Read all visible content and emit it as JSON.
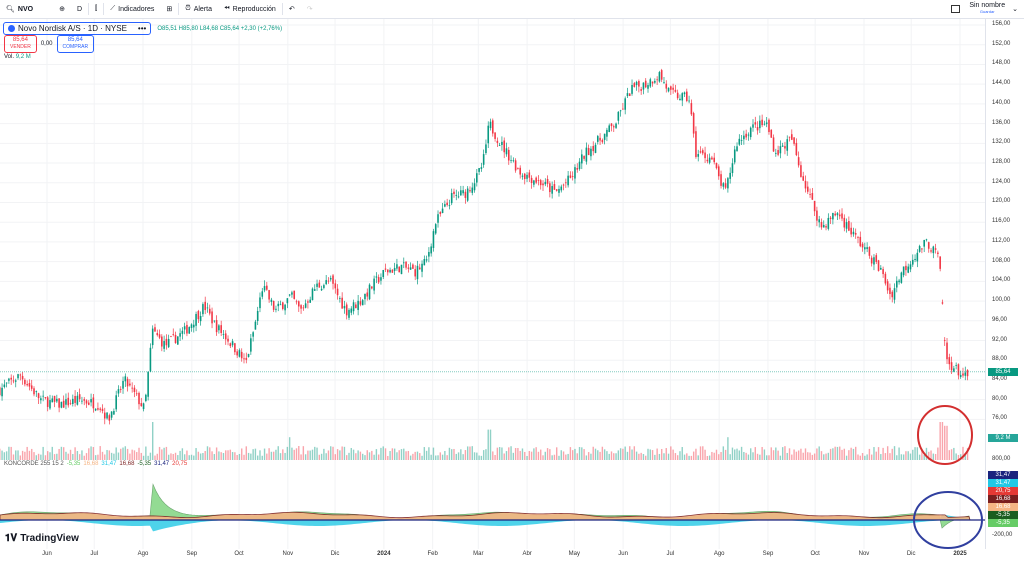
{
  "toolbar": {
    "symbol": "NVO",
    "interval": "D",
    "indicators": "Indicadores",
    "alert": "Alerta",
    "replay": "Reproducción",
    "layout_name": "Sin nombre",
    "save": "Guardar"
  },
  "legend": {
    "title": "Novo Nordisk A/S · 1D · NYSE",
    "ohlc": "O85,51 H85,80 L84,68 C85,64 +2,30 (+2,76%)",
    "sell_price": "85,64",
    "sell_label": "VENDER",
    "spread": "0,00",
    "buy_price": "85,64",
    "buy_label": "COMPRAR",
    "vol_label": "Vol.",
    "vol_value": "9,2 M"
  },
  "konkorde": {
    "name": "KONCORDE 255 15 2",
    "values": [
      {
        "v": "-5,35",
        "c": "#66cc66"
      },
      {
        "v": "16,68",
        "c": "#f5b584"
      },
      {
        "v": "31,47",
        "c": "#22c8e5"
      },
      {
        "v": "16,68",
        "c": "#7a1f1f"
      },
      {
        "v": "-5,35",
        "c": "#1b5e20"
      },
      {
        "v": "31,47",
        "c": "#1a237e"
      },
      {
        "v": "20,75",
        "c": "#e53935"
      }
    ]
  },
  "colors": {
    "up": "#089981",
    "down": "#f23645",
    "annotation_red": "#d32f2f",
    "annotation_blue": "#303f9f"
  },
  "axis_badges": [
    {
      "v": "31,47",
      "c": "#1a237e"
    },
    {
      "v": "31,47",
      "c": "#22c8e5"
    },
    {
      "v": "20,75",
      "c": "#e53935"
    },
    {
      "v": "16,68",
      "c": "#7a1f1f"
    },
    {
      "v": "16,68",
      "c": "#f5b584"
    },
    {
      "v": "-5,35",
      "c": "#1b5e20"
    },
    {
      "v": "-5,35",
      "c": "#66cc66"
    }
  ],
  "price_badge": "85,64",
  "volume_badge": "9,2 M",
  "volume_axis_label": "800,00",
  "konkorde_axis_label": "-200,00",
  "brand": "TradingView",
  "chart_data": {
    "type": "candlestick",
    "y_ticks": [
      "156,00",
      "152,00",
      "148,00",
      "144,00",
      "140,00",
      "136,00",
      "132,00",
      "128,00",
      "124,00",
      "120,00",
      "116,00",
      "112,00",
      "108,00",
      "104,00",
      "100,00",
      "96,00",
      "92,00",
      "88,00",
      "84,00",
      "80,00",
      "76,00"
    ],
    "ylim": [
      76,
      156
    ],
    "x_ticks": [
      [
        "Jun",
        "2023-06-01"
      ],
      [
        "Jul",
        "2023-07-01"
      ],
      [
        "Ago",
        "2023-08-01"
      ],
      [
        "Sep",
        "2023-09-01"
      ],
      [
        "Oct",
        "2023-10-01"
      ],
      [
        "Nov",
        "2023-11-01"
      ],
      [
        "Dic",
        "2023-12-01"
      ],
      [
        "2024",
        "2024-01-01"
      ],
      [
        "Feb",
        "2024-02-01"
      ],
      [
        "Mar",
        "2024-03-01"
      ],
      [
        "Abr",
        "2024-04-01"
      ],
      [
        "May",
        "2024-05-01"
      ],
      [
        "Jun",
        "2024-06-01"
      ],
      [
        "Jul",
        "2024-07-01"
      ],
      [
        "Ago",
        "2024-08-01"
      ],
      [
        "Sep",
        "2024-09-01"
      ],
      [
        "Oct",
        "2024-10-01"
      ],
      [
        "Nov",
        "2024-11-01"
      ],
      [
        "Dic",
        "2024-12-01"
      ],
      [
        "2025",
        "2025-01-01"
      ]
    ],
    "last_price": 85.64,
    "close": [
      [
        "2023-05-02",
        82
      ],
      [
        "2023-05-15",
        85
      ],
      [
        "2023-05-28",
        80
      ],
      [
        "2023-06-09",
        79
      ],
      [
        "2023-06-22",
        80
      ],
      [
        "2023-07-04",
        79
      ],
      [
        "2023-07-10",
        76
      ],
      [
        "2023-07-20",
        84
      ],
      [
        "2023-07-29",
        80
      ],
      [
        "2023-08-02",
        78
      ],
      [
        "2023-08-07",
        94
      ],
      [
        "2023-08-15",
        91
      ],
      [
        "2023-08-28",
        94
      ],
      [
        "2023-09-09",
        99
      ],
      [
        "2023-09-16",
        95
      ],
      [
        "2023-09-22",
        93
      ],
      [
        "2023-10-02",
        89
      ],
      [
        "2023-10-05",
        87
      ],
      [
        "2023-10-11",
        95
      ],
      [
        "2023-10-16",
        103
      ],
      [
        "2023-10-24",
        98
      ],
      [
        "2023-11-03",
        101
      ],
      [
        "2023-11-09",
        98
      ],
      [
        "2023-11-19",
        103
      ],
      [
        "2023-11-28",
        104
      ],
      [
        "2023-12-08",
        98
      ],
      [
        "2023-12-17",
        100
      ],
      [
        "2023-12-27",
        104
      ],
      [
        "2024-01-02",
        106
      ],
      [
        "2024-01-12",
        107
      ],
      [
        "2024-01-21",
        106
      ],
      [
        "2024-01-28",
        108
      ],
      [
        "2024-02-03",
        116
      ],
      [
        "2024-02-13",
        121
      ],
      [
        "2024-02-22",
        122
      ],
      [
        "2024-02-29",
        125
      ],
      [
        "2024-03-04",
        128
      ],
      [
        "2024-03-08",
        136
      ],
      [
        "2024-03-15",
        132
      ],
      [
        "2024-03-28",
        126
      ],
      [
        "2024-04-10",
        124
      ],
      [
        "2024-04-19",
        122
      ],
      [
        "2024-04-29",
        125
      ],
      [
        "2024-05-08",
        130
      ],
      [
        "2024-05-18",
        133
      ],
      [
        "2024-05-27",
        136
      ],
      [
        "2024-06-06",
        143
      ],
      [
        "2024-06-15",
        144
      ],
      [
        "2024-06-24",
        146
      ],
      [
        "2024-07-01",
        142
      ],
      [
        "2024-07-13",
        141
      ],
      [
        "2024-07-17",
        130
      ],
      [
        "2024-07-27",
        129
      ],
      [
        "2024-08-02",
        124
      ],
      [
        "2024-08-05",
        122
      ],
      [
        "2024-08-12",
        132
      ],
      [
        "2024-08-21",
        135
      ],
      [
        "2024-08-31",
        136
      ],
      [
        "2024-09-06",
        130
      ],
      [
        "2024-09-16",
        133
      ],
      [
        "2024-09-22",
        126
      ],
      [
        "2024-09-29",
        120
      ],
      [
        "2024-10-05",
        115
      ],
      [
        "2024-10-15",
        118
      ],
      [
        "2024-10-24",
        114
      ],
      [
        "2024-11-03",
        110
      ],
      [
        "2024-11-12",
        106
      ],
      [
        "2024-11-18",
        101
      ],
      [
        "2024-11-25",
        106
      ],
      [
        "2024-12-05",
        110
      ],
      [
        "2024-12-11",
        112
      ],
      [
        "2024-12-18",
        109
      ],
      [
        "2024-12-20",
        104
      ],
      [
        "2024-12-23",
        88
      ],
      [
        "2024-12-30",
        86
      ],
      [
        "2025-01-06",
        84
      ],
      [
        "2025-01-07",
        85.64
      ]
    ],
    "volume_spikes": [
      [
        "2023-08-07",
        1.0
      ],
      [
        "2023-11-02",
        0.6
      ],
      [
        "2024-03-08",
        0.8
      ],
      [
        "2024-08-07",
        0.6
      ],
      [
        "2024-12-20",
        1.0
      ],
      [
        "2024-12-23",
        0.9
      ]
    ],
    "konkorde_green_spikes": [
      [
        "2023-08-07",
        650
      ],
      [
        "2024-12-20",
        -280
      ]
    ]
  }
}
